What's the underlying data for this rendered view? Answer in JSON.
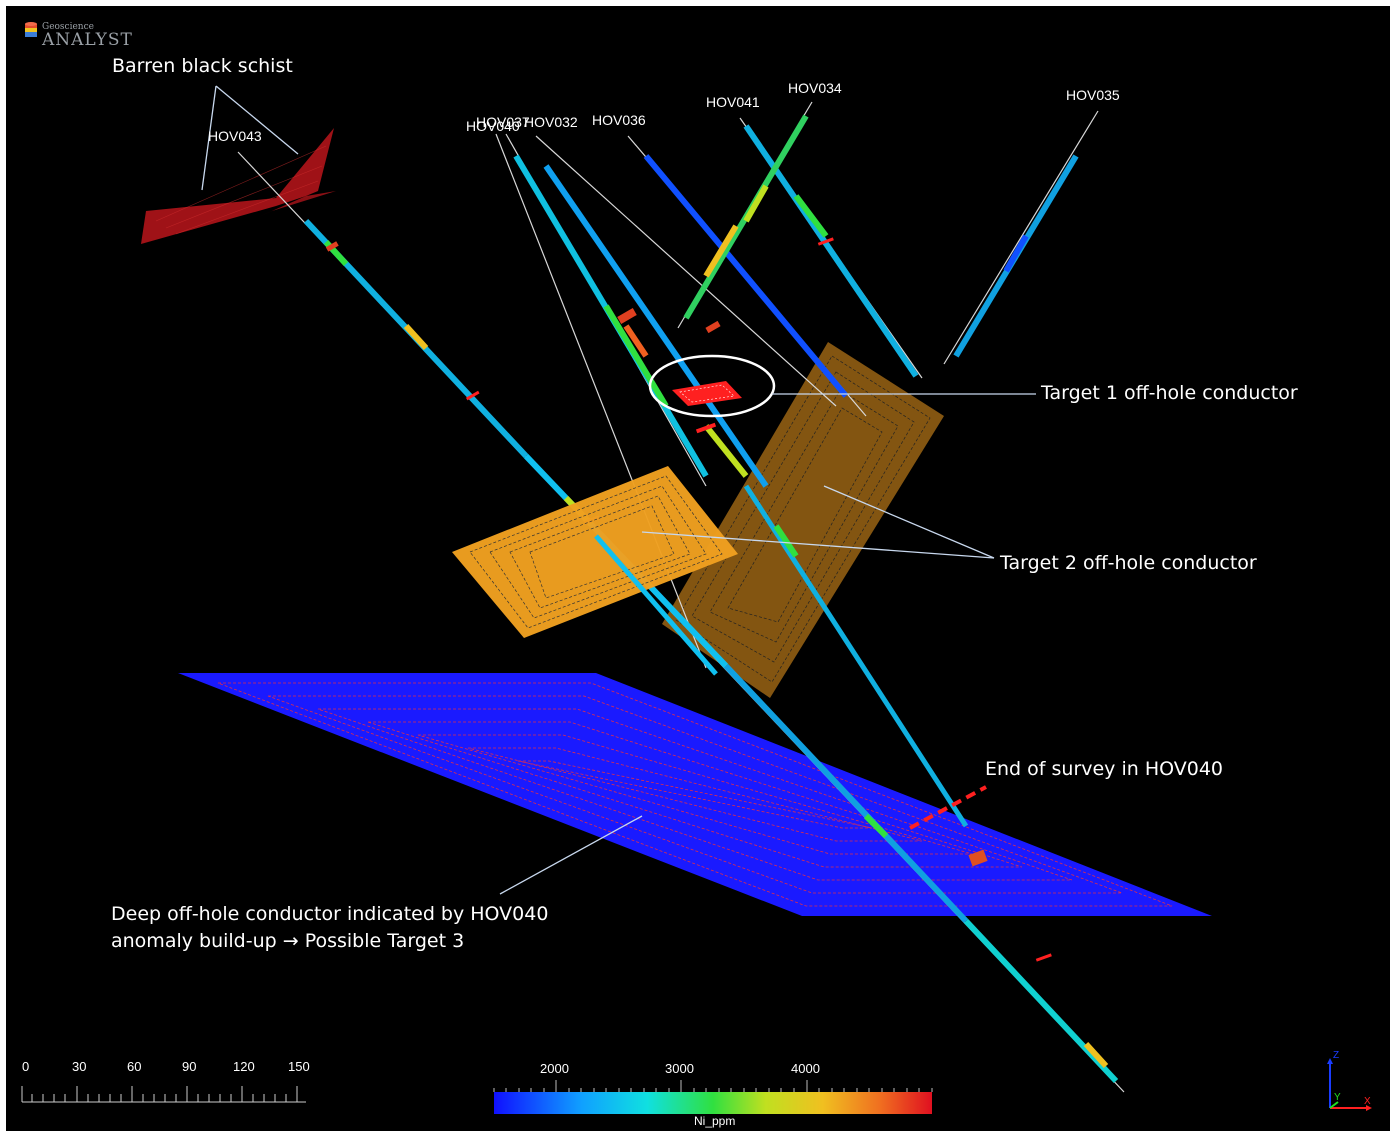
{
  "app": {
    "logo_small": "Geoscience",
    "logo_big": "ANALYST"
  },
  "annotations": {
    "barren": "Barren black schist",
    "target1": "Target 1 off-hole conductor",
    "target2": "Target 2 off-hole conductor",
    "end_survey": "End of survey in HOV040",
    "deep_line1": "Deep off-hole conductor indicated by HOV040",
    "deep_line2": "anomaly build-up → Possible Target 3"
  },
  "drillholes": [
    "HOV043",
    "HOV037",
    "HOV040",
    "HOV032",
    "HOV036",
    "HOV041",
    "HOV034",
    "HOV035"
  ],
  "scale_bar": {
    "ticks": [
      "0",
      "30",
      "60",
      "90",
      "120",
      "150"
    ]
  },
  "colorbar": {
    "variable": "Ni_ppm",
    "ticks": [
      "2000",
      "3000",
      "4000"
    ]
  },
  "axes": {
    "z": "Z",
    "y": "Y",
    "x": "X"
  },
  "colors": {
    "background": "#000000",
    "plate_red": "#b0141a",
    "plate_orange": "#f0a020",
    "plate_brown": "#8a5a12",
    "plate_blue": "#1a1aff",
    "end_marker": "#ff2020"
  }
}
